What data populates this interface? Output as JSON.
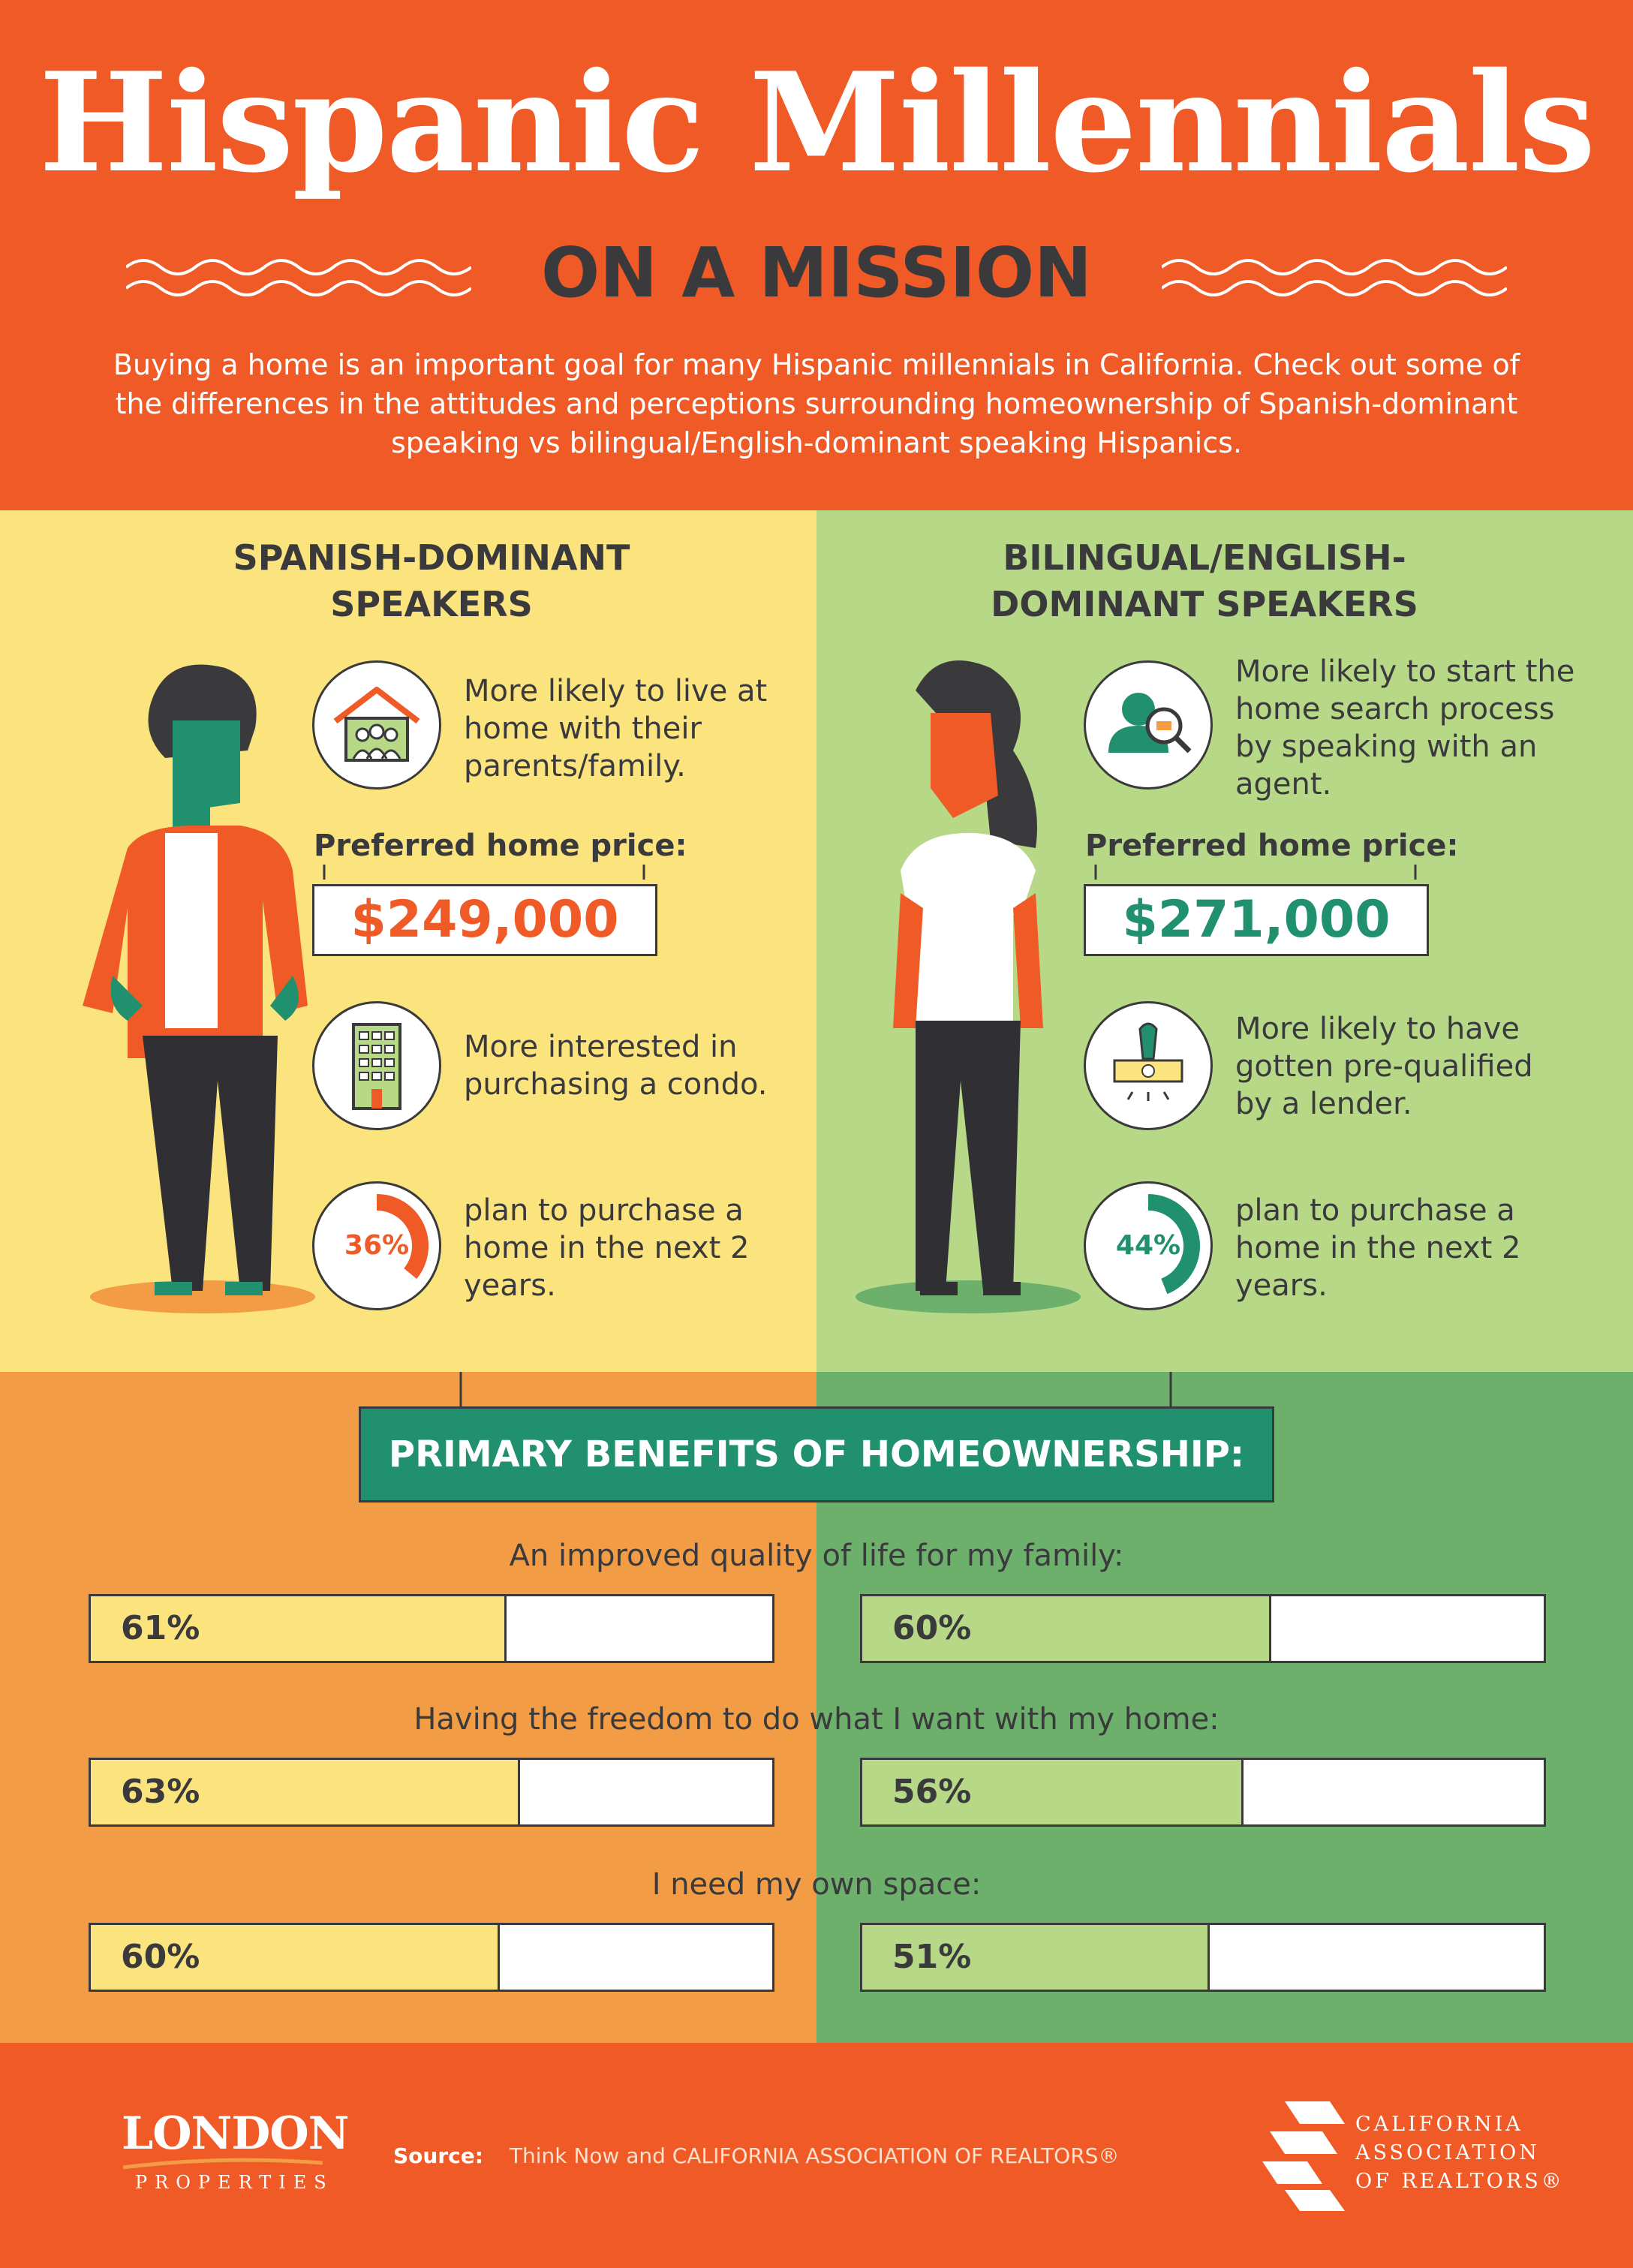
{
  "header": {
    "title": "Hispanic Millennials",
    "subtitle": "ON A MISSION",
    "intro": "Buying a home is an important goal for many Hispanic millennials in California. Check out some of the differences in the attitudes and perceptions surrounding homeownership of Spanish-dominant speaking vs bilingual/English-dominant speaking Hispanics."
  },
  "spanish": {
    "title": "SPANISH-DOMINANT SPEAKERS",
    "fact1": "More likely to live at home with their parents/family.",
    "price_label": "Preferred home price:",
    "price": "$249,000",
    "fact2": "More interested in purchasing a condo.",
    "plan_pct_label": "36%",
    "plan_pct": 36,
    "plan_text": "plan to purchase a home in the next 2 years.",
    "color": "#ef5a26"
  },
  "bilingual": {
    "title": "BILINGUAL/ENGLISH-DOMINANT SPEAKERS",
    "fact1": "More likely to start the home search process by speaking with an agent.",
    "price_label": "Preferred home price:",
    "price": "$271,000",
    "fact2": "More likely to have gotten pre-qualified by a lender.",
    "plan_pct_label": "44%",
    "plan_pct": 44,
    "plan_text": "plan to purchase a home in the next 2 years.",
    "color": "#21906f"
  },
  "benefits": {
    "heading": "PRIMARY BENEFITS OF HOMEOWNERSHIP:",
    "questions": [
      "An improved quality of life for my family:",
      "Having the freedom to do what I want with my home:",
      "I need my own space:"
    ]
  },
  "chart_data": {
    "type": "bar",
    "title": "PRIMARY BENEFITS OF HOMEOWNERSHIP:",
    "categories": [
      "An improved quality of life for my family:",
      "Having the freedom to do what I want with my home:",
      "I need my own space:"
    ],
    "series": [
      {
        "name": "SPANISH-DOMINANT SPEAKERS",
        "values": [
          61,
          63,
          60
        ],
        "labels": [
          "61%",
          "63%",
          "60%"
        ],
        "color": "#fbe47e"
      },
      {
        "name": "BILINGUAL/ENGLISH-DOMINANT SPEAKERS",
        "values": [
          60,
          56,
          51
        ],
        "labels": [
          "60%",
          "56%",
          "51%"
        ],
        "color": "#b7d987"
      }
    ],
    "ylim": [
      0,
      100
    ]
  },
  "footer": {
    "logo_london": "LONDON",
    "logo_properties": "PROPERTIES",
    "source_label": "Source:",
    "source_text": "Think Now and CALIFORNIA ASSOCIATION OF REALTORS®",
    "car_line1": "CALIFORNIA",
    "car_line2": "ASSOCIATION",
    "car_line3": "OF REALTORS®"
  }
}
